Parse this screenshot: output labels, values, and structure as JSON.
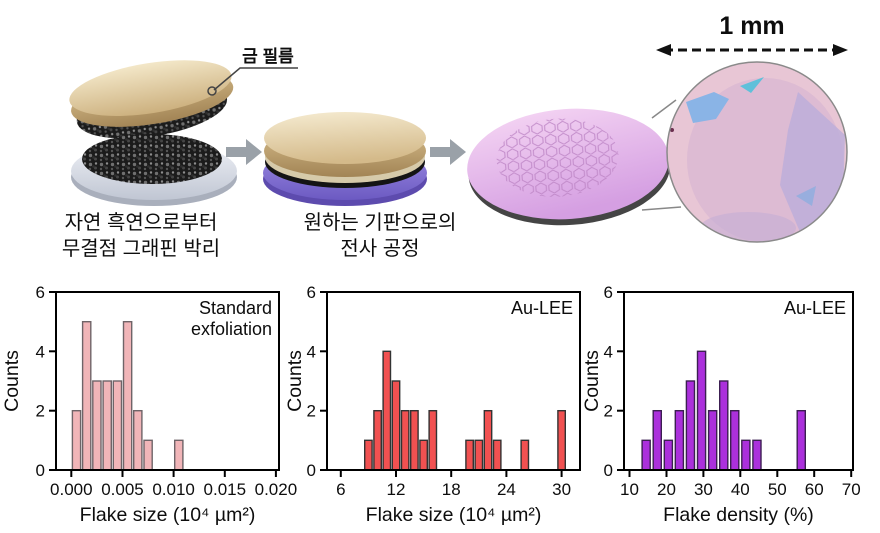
{
  "figure": {
    "scale_label": "1 mm",
    "gold_film_label": "금 필름",
    "step1_caption": {
      "line1": "자연 흑연으로부터",
      "line2": "무결점 그래핀 박리"
    },
    "step2_caption": {
      "line1": "원하는 기판으로의",
      "line2": "전사 공정"
    },
    "illustration_colors": {
      "gold_film": "#e2cf9f",
      "graphene_lattice": "#1b1b1b",
      "source_substrate_gray": "#d7dce5",
      "transfer_substrate_purple": "#7a68c9",
      "wafer_pink": "#e8b9ea",
      "microscope_pink": "#e8c6d5",
      "microscope_flake_lavender": "#bdaed9",
      "microscope_flake_blue": "#8ab4e6",
      "arrow_gray": "#9aa1a8"
    }
  },
  "chart_data": [
    {
      "type": "bar",
      "annotation": [
        "Standard",
        "exfoliation"
      ],
      "xlabel": "Flake size (10⁴ µm²)",
      "ylabel": "Counts",
      "xlim": [
        -0.0015,
        0.0203
      ],
      "ylim": [
        0,
        6
      ],
      "xticks": [
        0.0,
        0.005,
        0.01,
        0.015,
        0.02
      ],
      "xtick_labels": [
        "0.000",
        "0.005",
        "0.010",
        "0.015",
        "0.020"
      ],
      "yticks": [
        0,
        2,
        4,
        6
      ],
      "bar_width": 0.0008,
      "centers": [
        0.0005,
        0.0015,
        0.0025,
        0.0035,
        0.0045,
        0.0055,
        0.0065,
        0.0075,
        0.0105
      ],
      "values": [
        2,
        5,
        3,
        3,
        3,
        5,
        2,
        1,
        1
      ],
      "grid": false,
      "fill": "#f1b5b8",
      "stroke": "#6f6468"
    },
    {
      "type": "bar",
      "annotation": [
        "Au-LEE"
      ],
      "xlabel": "Flake size (10⁴ µm²)",
      "ylabel": "Counts",
      "xlim": [
        4.5,
        32
      ],
      "ylim": [
        0,
        6
      ],
      "xticks": [
        6,
        12,
        18,
        24,
        30
      ],
      "xtick_labels": [
        "6",
        "12",
        "18",
        "24",
        "30"
      ],
      "yticks": [
        0,
        2,
        4,
        6
      ],
      "bar_width": 0.8,
      "centers": [
        9,
        10,
        11,
        12,
        13,
        14,
        15,
        16,
        20,
        21,
        22,
        23,
        26,
        30
      ],
      "values": [
        1,
        2,
        4,
        3,
        2,
        2,
        1,
        2,
        1,
        1,
        2,
        1,
        1,
        2
      ],
      "grid": false,
      "fill": "#f15151",
      "stroke": "#333333"
    },
    {
      "type": "bar",
      "annotation": [
        "Au-LEE"
      ],
      "xlabel": "Flake density (%)",
      "ylabel": "Counts",
      "xlim": [
        8.5,
        70.5
      ],
      "ylim": [
        0,
        6
      ],
      "xticks": [
        10,
        20,
        30,
        40,
        50,
        60,
        70
      ],
      "xtick_labels": [
        "10",
        "20",
        "30",
        "40",
        "50",
        "60",
        "70"
      ],
      "yticks": [
        0,
        2,
        4,
        6
      ],
      "bar_width": 2.2,
      "centers": [
        14.5,
        17.5,
        20.5,
        23.5,
        26.5,
        29.5,
        32.5,
        35.5,
        38.5,
        41.5,
        44.5,
        56.5
      ],
      "values": [
        1,
        2,
        1,
        2,
        3,
        4,
        2,
        3,
        2,
        1,
        1,
        2
      ],
      "grid": false,
      "fill": "#ab30dc",
      "stroke": "#3c1f52"
    }
  ]
}
